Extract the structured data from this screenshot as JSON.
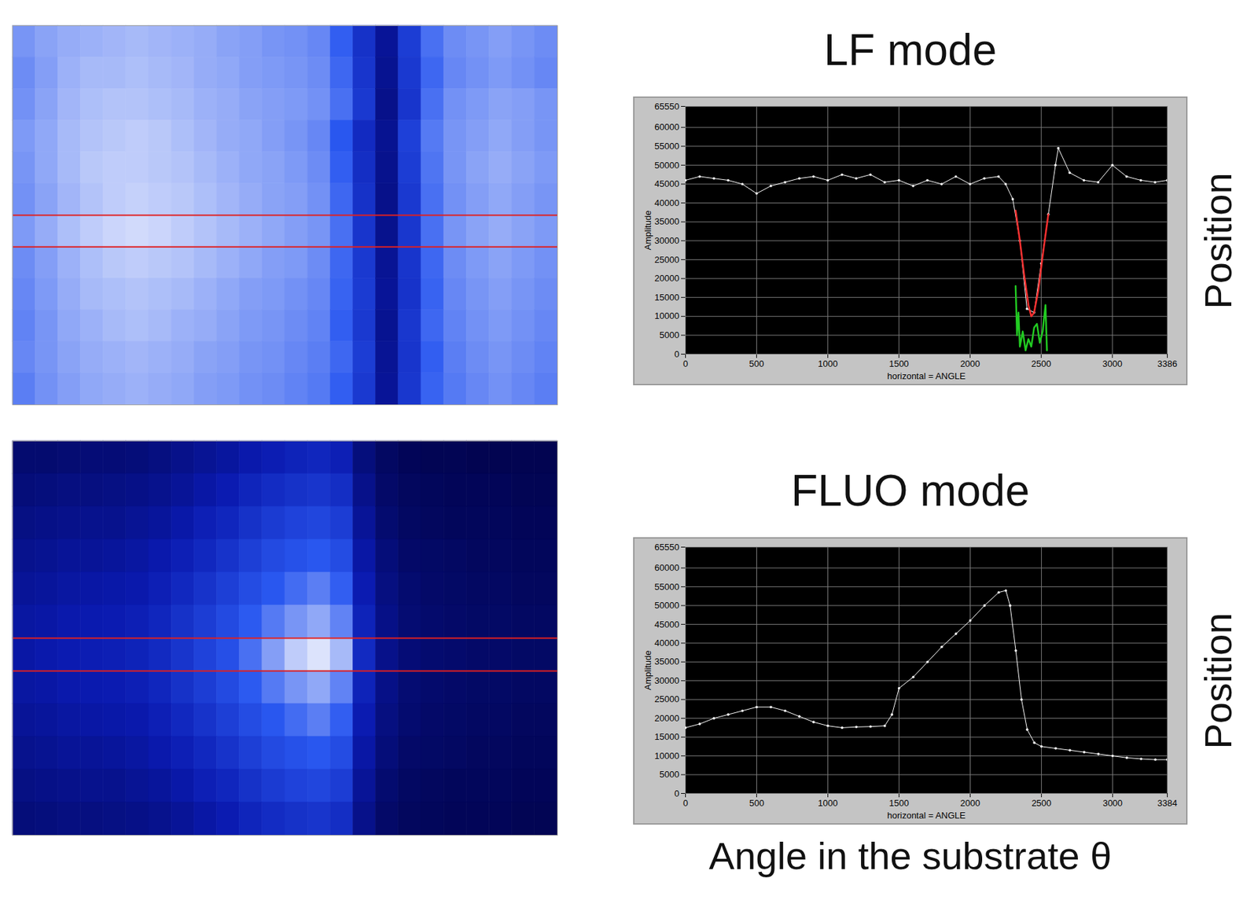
{
  "chart_data": [
    {
      "type": "heatmap",
      "tick_labels": false,
      "zlim": [
        0,
        100
      ],
      "selected_row": 6,
      "cells": [
        [
          80,
          83,
          85,
          86,
          87,
          88,
          87,
          86,
          85,
          83,
          82,
          80,
          79,
          77,
          68,
          46,
          26,
          52,
          72,
          78,
          80,
          82,
          80,
          78
        ],
        [
          78,
          82,
          86,
          88,
          88,
          89,
          88,
          87,
          85,
          84,
          82,
          81,
          80,
          78,
          70,
          48,
          24,
          50,
          70,
          77,
          79,
          81,
          79,
          77
        ],
        [
          79,
          83,
          87,
          89,
          90,
          90,
          89,
          88,
          86,
          85,
          83,
          82,
          81,
          79,
          72,
          50,
          22,
          48,
          72,
          79,
          81,
          83,
          82,
          80
        ],
        [
          81,
          84,
          88,
          90,
          91,
          92,
          91,
          89,
          87,
          85,
          84,
          82,
          80,
          77,
          66,
          42,
          24,
          54,
          74,
          80,
          82,
          84,
          82,
          80
        ],
        [
          80,
          84,
          88,
          91,
          92,
          92,
          91,
          90,
          88,
          86,
          84,
          83,
          81,
          78,
          68,
          44,
          23,
          52,
          73,
          80,
          83,
          85,
          83,
          81
        ],
        [
          79,
          83,
          87,
          90,
          92,
          93,
          92,
          91,
          89,
          87,
          85,
          83,
          82,
          79,
          70,
          46,
          22,
          50,
          72,
          79,
          82,
          84,
          82,
          80
        ],
        [
          81,
          85,
          89,
          92,
          94,
          95,
          94,
          92,
          90,
          88,
          86,
          84,
          82,
          80,
          72,
          48,
          23,
          49,
          72,
          80,
          83,
          85,
          83,
          81
        ],
        [
          78,
          82,
          86,
          89,
          91,
          92,
          91,
          90,
          88,
          86,
          84,
          82,
          81,
          78,
          70,
          50,
          25,
          48,
          70,
          78,
          81,
          83,
          81,
          79
        ],
        [
          77,
          81,
          85,
          88,
          89,
          90,
          89,
          88,
          86,
          84,
          82,
          81,
          79,
          77,
          69,
          51,
          26,
          47,
          69,
          77,
          80,
          82,
          80,
          78
        ],
        [
          76,
          80,
          84,
          86,
          88,
          89,
          88,
          86,
          85,
          83,
          81,
          80,
          78,
          76,
          68,
          50,
          24,
          49,
          70,
          76,
          79,
          81,
          79,
          77
        ],
        [
          77,
          80,
          83,
          85,
          86,
          87,
          86,
          85,
          83,
          82,
          80,
          79,
          77,
          75,
          70,
          52,
          25,
          48,
          68,
          75,
          78,
          80,
          78,
          76
        ],
        [
          75,
          79,
          82,
          84,
          85,
          86,
          85,
          84,
          82,
          81,
          79,
          78,
          76,
          74,
          68,
          50,
          26,
          49,
          69,
          74,
          77,
          79,
          77,
          75
        ]
      ]
    },
    {
      "type": "line",
      "title": "LF mode",
      "x_label": "horizontal = ANGLE",
      "y_label": "Amplitude",
      "xlim": [
        0,
        3386
      ],
      "xticks": [
        0,
        500,
        1000,
        1500,
        2000,
        2500,
        3000,
        3386
      ],
      "ylim": [
        0,
        65550
      ],
      "yticks": [
        0,
        5000,
        10000,
        15000,
        20000,
        25000,
        30000,
        35000,
        40000,
        45000,
        50000,
        55000,
        60000,
        65550
      ],
      "grid": true,
      "annotations": [
        "Position"
      ],
      "series": [
        {
          "color": "#ffffff",
          "marker": "dot",
          "x": [
            0,
            100,
            200,
            300,
            400,
            500,
            600,
            700,
            800,
            900,
            1000,
            1100,
            1200,
            1300,
            1400,
            1500,
            1600,
            1700,
            1800,
            1900,
            2000,
            2100,
            2200,
            2250,
            2300,
            2350,
            2400,
            2450,
            2500,
            2550,
            2600,
            2620,
            2700,
            2800,
            2900,
            3000,
            3100,
            3200,
            3300,
            3386
          ],
          "values": [
            46000,
            47000,
            46500,
            46000,
            45000,
            42500,
            44500,
            45500,
            46500,
            47000,
            46000,
            47500,
            46500,
            47500,
            45500,
            46000,
            44500,
            46000,
            45000,
            47000,
            45000,
            46500,
            47000,
            45000,
            41000,
            30000,
            12000,
            11000,
            24000,
            37000,
            50000,
            54500,
            48000,
            46000,
            45500,
            50000,
            47000,
            46000,
            45500,
            46000
          ]
        },
        {
          "color": "#ff3030",
          "x": [
            2320,
            2350,
            2380,
            2410,
            2430,
            2450,
            2480,
            2510,
            2550
          ],
          "values": [
            38000,
            30000,
            21000,
            13000,
            10000,
            11000,
            17000,
            26000,
            37000
          ]
        },
        {
          "color": "#22cc22",
          "x": [
            2320,
            2330,
            2340,
            2350,
            2370,
            2390,
            2410,
            2430,
            2450,
            2470,
            2490,
            2510,
            2530,
            2540
          ],
          "values": [
            18000,
            5000,
            11000,
            2000,
            6000,
            1000,
            4000,
            2000,
            7000,
            8000,
            3000,
            6000,
            13000,
            1000
          ]
        }
      ]
    },
    {
      "type": "heatmap",
      "tick_labels": false,
      "zlim": [
        0,
        100
      ],
      "selected_row": 6,
      "cells": [
        [
          14,
          14,
          15,
          16,
          16,
          17,
          19,
          22,
          25,
          28,
          32,
          35,
          38,
          40,
          36,
          18,
          10,
          7,
          6,
          6,
          5,
          5,
          5,
          5
        ],
        [
          17,
          18,
          19,
          19,
          20,
          21,
          23,
          26,
          30,
          34,
          39,
          43,
          46,
          48,
          44,
          22,
          12,
          9,
          8,
          7,
          7,
          7,
          6,
          6
        ],
        [
          20,
          21,
          22,
          23,
          23,
          25,
          27,
          31,
          36,
          40,
          46,
          51,
          55,
          57,
          52,
          26,
          14,
          10,
          9,
          8,
          8,
          8,
          7,
          7
        ],
        [
          23,
          24,
          26,
          26,
          27,
          29,
          32,
          36,
          41,
          47,
          53,
          59,
          63,
          66,
          60,
          30,
          17,
          12,
          11,
          10,
          9,
          9,
          8,
          8
        ],
        [
          26,
          27,
          29,
          30,
          31,
          32,
          36,
          41,
          47,
          53,
          60,
          66,
          71,
          75,
          68,
          34,
          19,
          14,
          12,
          11,
          10,
          10,
          9,
          9
        ],
        [
          29,
          30,
          32,
          33,
          34,
          36,
          40,
          46,
          52,
          59,
          67,
          74,
          80,
          84,
          76,
          38,
          21,
          15,
          13,
          12,
          11,
          11,
          10,
          10
        ],
        [
          30,
          32,
          34,
          35,
          36,
          38,
          42,
          48,
          55,
          62,
          72,
          82,
          92,
          97,
          88,
          42,
          22,
          16,
          14,
          13,
          12,
          12,
          11,
          11
        ],
        [
          29,
          30,
          32,
          33,
          34,
          36,
          40,
          46,
          52,
          59,
          67,
          74,
          80,
          84,
          76,
          38,
          21,
          15,
          13,
          12,
          11,
          11,
          10,
          10
        ],
        [
          26,
          27,
          29,
          30,
          31,
          32,
          36,
          41,
          47,
          53,
          60,
          66,
          71,
          75,
          68,
          34,
          19,
          14,
          12,
          11,
          10,
          10,
          9,
          9
        ],
        [
          23,
          24,
          26,
          26,
          27,
          29,
          32,
          36,
          41,
          47,
          53,
          59,
          63,
          66,
          60,
          30,
          17,
          12,
          11,
          10,
          9,
          9,
          8,
          8
        ],
        [
          20,
          21,
          22,
          23,
          23,
          25,
          27,
          31,
          36,
          40,
          46,
          51,
          55,
          57,
          52,
          26,
          14,
          10,
          9,
          8,
          8,
          8,
          7,
          7
        ],
        [
          17,
          18,
          19,
          19,
          20,
          21,
          23,
          26,
          30,
          34,
          39,
          43,
          46,
          48,
          44,
          22,
          12,
          9,
          8,
          7,
          7,
          7,
          6,
          6
        ]
      ]
    },
    {
      "type": "line",
      "title": "FLUO mode",
      "x_label": "horizontal = ANGLE",
      "y_label": "Amplitude",
      "xlim": [
        0,
        3384
      ],
      "xticks": [
        0,
        500,
        1000,
        1500,
        2000,
        2500,
        3000,
        3384
      ],
      "ylim": [
        0,
        65550
      ],
      "yticks": [
        0,
        5000,
        10000,
        15000,
        20000,
        25000,
        30000,
        35000,
        40000,
        45000,
        50000,
        55000,
        60000,
        65550
      ],
      "grid": true,
      "annotations": [
        "Position",
        "Angle in the substrate θ"
      ],
      "series": [
        {
          "color": "#ffffff",
          "marker": "dot",
          "x": [
            0,
            100,
            200,
            300,
            400,
            500,
            600,
            700,
            800,
            900,
            1000,
            1100,
            1200,
            1300,
            1400,
            1450,
            1500,
            1600,
            1700,
            1800,
            1900,
            2000,
            2100,
            2200,
            2250,
            2280,
            2320,
            2360,
            2400,
            2450,
            2500,
            2600,
            2700,
            2800,
            2900,
            3000,
            3100,
            3200,
            3300,
            3384
          ],
          "values": [
            17500,
            18500,
            20000,
            21000,
            22000,
            23000,
            23000,
            22000,
            20500,
            19000,
            18000,
            17500,
            17700,
            17800,
            18000,
            21000,
            28000,
            31000,
            35000,
            39000,
            42500,
            46000,
            50000,
            53500,
            54000,
            50000,
            38000,
            25000,
            17000,
            13500,
            12500,
            12000,
            11500,
            11000,
            10500,
            10000,
            9500,
            9200,
            9000,
            9000
          ]
        }
      ]
    }
  ]
}
